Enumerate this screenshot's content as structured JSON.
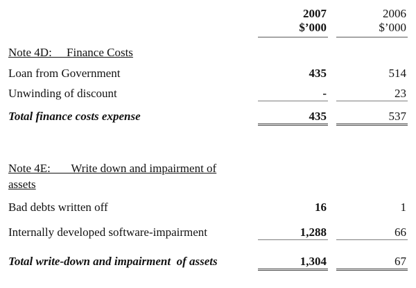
{
  "style": {
    "background": "#ffffff",
    "ink": "#121212",
    "single_rule": "#7d7d7d",
    "double_rule": "#454545"
  },
  "table": {
    "columns": [
      {
        "year": "2007",
        "unit": "$’000",
        "bold": true
      },
      {
        "year": "2006",
        "unit": "$’000",
        "bold": false
      }
    ]
  },
  "sections": [
    {
      "heading": "Note 4D:     Finance Costs",
      "rows": [
        {
          "label": "Loan from Government",
          "values": [
            "435",
            "514"
          ]
        },
        {
          "label": "Unwinding of discount",
          "values": [
            "-",
            "23"
          ]
        }
      ],
      "total": {
        "label": "Total finance costs expense",
        "values": [
          "435",
          "537"
        ]
      }
    },
    {
      "heading": "Note 4E:       Write down and impairment of\nassets",
      "rows": [
        {
          "label": "Bad debts written off",
          "values": [
            "16",
            "1"
          ]
        },
        {
          "label": "Internally developed software-impairment",
          "values": [
            "1,288",
            "66"
          ]
        }
      ],
      "total": {
        "label": "Total write-down and impairment  of assets",
        "values": [
          "1,304",
          "67"
        ]
      }
    }
  ]
}
